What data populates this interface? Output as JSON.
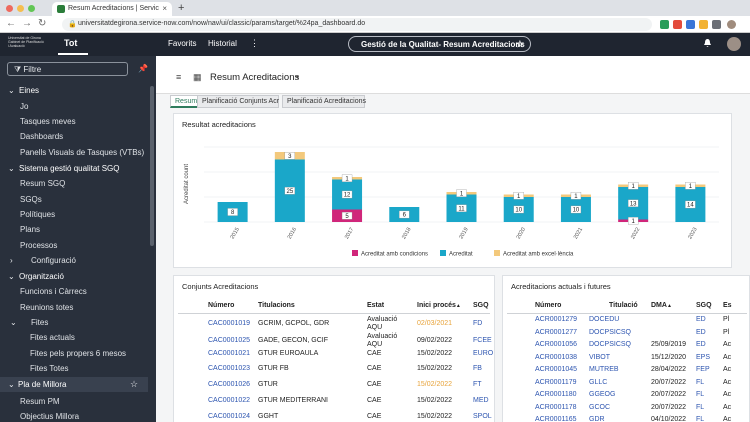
{
  "browser": {
    "tab_title": "Resum Acreditacions | Servic",
    "tab_close": "×",
    "new_tab": "+",
    "url": "universitatdegirona.service-now.com/now/nav/ui/classic/params/target/%24pa_dashboard.do"
  },
  "header": {
    "logo_lines": [
      "Universitat de Girona",
      "Gabinet de Planificació",
      "i Avaluació"
    ],
    "nav_all": "Tot",
    "nav_favorites": "Favorits",
    "nav_history": "Historial",
    "nav_more": "⋮",
    "app_title": "Gestió de la Qualitat- Resum Acreditacions",
    "star": "☆",
    "bell": "🔔"
  },
  "sidebar": {
    "filter_label": "Filtre",
    "pin": "📌",
    "items": [
      {
        "label": "Eines",
        "level": 0,
        "arrow": "⌄"
      },
      {
        "label": "Jo",
        "level": 1
      },
      {
        "label": "Tasques meves",
        "level": 1
      },
      {
        "label": "Dashboards",
        "level": 1
      },
      {
        "label": "Panells Visuals de Tasques (VTBs)",
        "level": 1
      },
      {
        "label": "Sistema gestió qualitat SGQ",
        "level": 0,
        "arrow": "⌄"
      },
      {
        "label": "Resum SGQ",
        "level": 1
      },
      {
        "label": "SGQs",
        "level": 1
      },
      {
        "label": "Polítiques",
        "level": 1
      },
      {
        "label": "Plans",
        "level": 1
      },
      {
        "label": "Processos",
        "level": 1
      },
      {
        "label": "Configuració",
        "level": 2,
        "arrow": "›"
      },
      {
        "label": "Organització",
        "level": 0,
        "arrow": "⌄"
      },
      {
        "label": "Funcions i Càrrecs",
        "level": 1
      },
      {
        "label": "Reunions totes",
        "level": 1
      },
      {
        "label": "Fites",
        "level": 2,
        "arrow": "⌄"
      },
      {
        "label": "Fites actuals",
        "level": 3
      },
      {
        "label": "Fites pels propers 6 mesos",
        "level": 3
      },
      {
        "label": "Fites Totes",
        "level": 3
      },
      {
        "label": "Pla de Millora",
        "level": 0,
        "arrow": "⌄",
        "selected": true,
        "star": "☆"
      },
      {
        "label": "Resum PM",
        "level": 1
      },
      {
        "label": "Objectius Millora",
        "level": 1
      }
    ]
  },
  "dashboard": {
    "title": "Resum Acreditacions",
    "caret": "▾",
    "tabs": [
      "Resum",
      "Planificació Conjunts Acr",
      "Planificació Acreditacions"
    ]
  },
  "chart_card": {
    "title": "Resultat acreditacions"
  },
  "chart_data": {
    "type": "bar",
    "stacked": true,
    "ylabel": "Acreditat count",
    "categories": [
      "2015",
      "2016",
      "2017",
      "2018",
      "2019",
      "2020",
      "2021",
      "2022",
      "2023"
    ],
    "series": [
      {
        "name": "Acreditat amb condicions",
        "color": "#d0267a",
        "values": [
          0,
          0,
          5,
          0,
          0,
          0,
          0,
          1,
          0
        ]
      },
      {
        "name": "Acreditat",
        "color": "#1aa7c9",
        "values": [
          8,
          25,
          12,
          6,
          11,
          10,
          10,
          13,
          14
        ]
      },
      {
        "name": "Acreditat amb excel·lència",
        "color": "#f3c97c",
        "values": [
          0,
          3,
          1,
          0,
          1,
          1,
          1,
          1,
          1
        ]
      }
    ],
    "labels": [
      {
        "cat": "2015",
        "series": 1,
        "text": "8"
      },
      {
        "cat": "2016",
        "series": 1,
        "text": "25"
      },
      {
        "cat": "2016",
        "series": 2,
        "text": "3"
      },
      {
        "cat": "2017",
        "series": 0,
        "text": "5"
      },
      {
        "cat": "2017",
        "series": 1,
        "text": "12"
      },
      {
        "cat": "2017",
        "series": 2,
        "text": "1"
      },
      {
        "cat": "2018",
        "series": 1,
        "text": "6"
      },
      {
        "cat": "2019",
        "series": 1,
        "text": "11"
      },
      {
        "cat": "2019",
        "series": 2,
        "text": "1"
      },
      {
        "cat": "2020",
        "series": 1,
        "text": "10"
      },
      {
        "cat": "2020",
        "series": 2,
        "text": "1"
      },
      {
        "cat": "2021",
        "series": 1,
        "text": "10"
      },
      {
        "cat": "2021",
        "series": 2,
        "text": "1"
      },
      {
        "cat": "2022",
        "series": 0,
        "text": "1"
      },
      {
        "cat": "2022",
        "series": 1,
        "text": "13"
      },
      {
        "cat": "2022",
        "series": 2,
        "text": "1"
      },
      {
        "cat": "2023",
        "series": 1,
        "text": "14"
      },
      {
        "cat": "2023",
        "series": 2,
        "text": "1"
      }
    ],
    "ylim": [
      0,
      30
    ],
    "grid": true,
    "legend_position": "bottom"
  },
  "conjunts": {
    "title": "Conjunts Acreditacions",
    "sort_arrow": "▲",
    "headers": [
      "Número",
      "Titulacions",
      "Estat",
      "Inici procés",
      "SGQ"
    ],
    "rows": [
      {
        "num": "CAC0001019",
        "tit": "GCRIM, GCPOL, GDR",
        "estat": "Avaluació AQU",
        "inici": "02/03/2021",
        "orange": true,
        "sgq": "FD"
      },
      {
        "num": "CAC0001025",
        "tit": "GADE, GECON, GCIF",
        "estat": "Avaluació AQU",
        "inici": "09/02/2022",
        "orange": false,
        "sgq": "FCEE"
      },
      {
        "num": "CAC0001021",
        "tit": "GTUR EUROAULA",
        "estat": "CAE",
        "inici": "15/02/2022",
        "orange": false,
        "sgq": "EURO"
      },
      {
        "num": "CAC0001023",
        "tit": "GTUR FB",
        "estat": "CAE",
        "inici": "15/02/2022",
        "orange": false,
        "sgq": "FB"
      },
      {
        "num": "CAC0001026",
        "tit": "GTUR",
        "estat": "CAE",
        "inici": "15/02/2022",
        "orange": true,
        "sgq": "FT"
      },
      {
        "num": "CAC0001022",
        "tit": "GTUR MEDITERRANI",
        "estat": "CAE",
        "inici": "15/02/2022",
        "orange": false,
        "sgq": "MED"
      },
      {
        "num": "CAC0001024",
        "tit": "GGHT",
        "estat": "CAE",
        "inici": "15/02/2022",
        "orange": false,
        "sgq": "SPOL"
      }
    ]
  },
  "actuals": {
    "title": "Acreditacions actuals i futures",
    "sort_arrow": "▲",
    "headers": [
      "Número",
      "Titulació",
      "DMA",
      "SGQ",
      "Es"
    ],
    "rows": [
      {
        "num": "ACR0001279",
        "tit": "DOCEDU",
        "dma": "",
        "sgq": "ED",
        "es": "Pl"
      },
      {
        "num": "ACR0001277",
        "tit": "DOCPSICSQ",
        "dma": "",
        "sgq": "ED",
        "es": "Pl"
      },
      {
        "num": "ACR0001056",
        "tit": "DOCPSICSQ",
        "dma": "25/09/2019",
        "sgq": "ED",
        "es": "Ac"
      },
      {
        "num": "ACR0001038",
        "tit": "VIBOT",
        "dma": "15/12/2020",
        "sgq": "EPS",
        "es": "Ac"
      },
      {
        "num": "ACR0001045",
        "tit": "MUTREB",
        "dma": "28/04/2022",
        "sgq": "FEP",
        "es": "Ac"
      },
      {
        "num": "ACR0001179",
        "tit": "GLLC",
        "dma": "20/07/2022",
        "sgq": "FL",
        "es": "Ac"
      },
      {
        "num": "ACR0001180",
        "tit": "GGEOG",
        "dma": "20/07/2022",
        "sgq": "FL",
        "es": "Ac"
      },
      {
        "num": "ACR0001178",
        "tit": "GCOC",
        "dma": "20/07/2022",
        "sgq": "FL",
        "es": "Ac"
      },
      {
        "num": "ACR0001165",
        "tit": "GDR",
        "dma": "04/10/2022",
        "sgq": "FL",
        "es": "Ac"
      }
    ]
  }
}
